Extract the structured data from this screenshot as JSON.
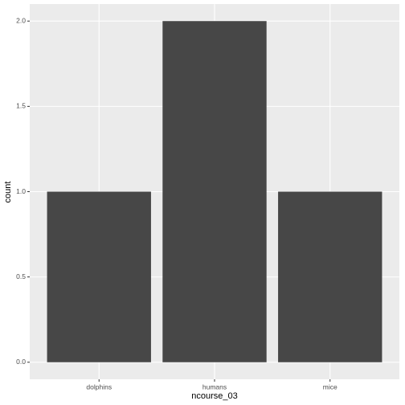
{
  "chart_data": {
    "type": "bar",
    "x_label": "ncourse_03",
    "y_label": "count",
    "categories": [
      "dolphins",
      "humans",
      "mice"
    ],
    "values": [
      1,
      2,
      1
    ],
    "color": "#474747",
    "ylim": [
      -0.1,
      2.1
    ],
    "yticks": [
      {
        "value": 0,
        "label": "0.0"
      },
      {
        "value": 0.5,
        "label": "0.5"
      },
      {
        "value": 1,
        "label": "1.0"
      },
      {
        "value": 1.5,
        "label": "1.5"
      },
      {
        "value": 2,
        "label": "2.0"
      }
    ],
    "grid": true
  }
}
